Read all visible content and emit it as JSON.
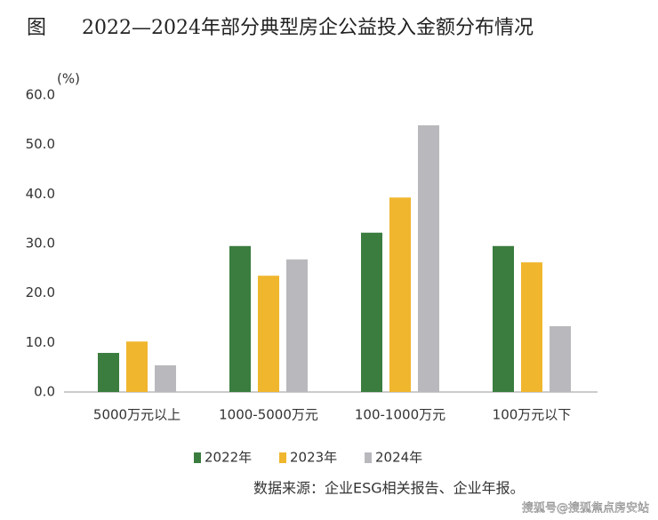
{
  "chart_data": {
    "type": "bar",
    "figure_label": "图",
    "title": "2022—2024年部分典型房企公益投入金额分布情况",
    "y_unit": "(%)",
    "categories": [
      "5000万元以上",
      "1000-5000万元",
      "100-1000万元",
      "100万元以下"
    ],
    "series": [
      {
        "name": "2022年",
        "color": "#3b7d3f",
        "values": [
          7.9,
          29.5,
          32.2,
          29.5
        ]
      },
      {
        "name": "2023年",
        "color": "#f0b62e",
        "values": [
          10.2,
          23.5,
          39.3,
          26.2
        ]
      },
      {
        "name": "2024年",
        "color": "#b9b9bd",
        "values": [
          5.4,
          26.8,
          53.9,
          13.3
        ]
      }
    ],
    "ylim": [
      0,
      60
    ],
    "yticks": [
      {
        "value": 0,
        "label": "0.0"
      },
      {
        "value": 10,
        "label": "10.0"
      },
      {
        "value": 20,
        "label": "20.0"
      },
      {
        "value": 30,
        "label": "30.0"
      },
      {
        "value": 40,
        "label": "40.0"
      },
      {
        "value": 50,
        "label": "50.0"
      },
      {
        "value": 60,
        "label": "60.0"
      }
    ],
    "grid": false,
    "legend": "bottom",
    "source": "数据来源：企业ESG相关报告、企业年报。",
    "watermark": "搜狐号@搜狐焦点房安站"
  }
}
